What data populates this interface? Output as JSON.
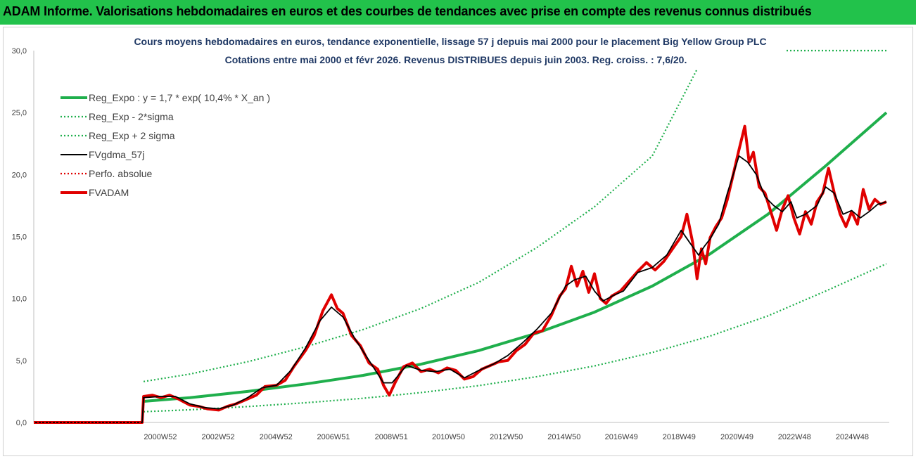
{
  "page": {
    "banner_title": "ADAM Informe. Valorisations hebdomadaires en euros et des courbes de tendances avec prise en compte des revenus connus distribués"
  },
  "colors": {
    "banner": "#22c24b",
    "reg_expo": "#1faf4c",
    "sigma": "#1faf4c",
    "fvgdma": "#000000",
    "perfo": "#e00000",
    "fvadam": "#e00000"
  },
  "chart_data": {
    "type": "line",
    "title": "Cours moyens hebdomadaires en euros, tendance exponentielle, lissage 57 j depuis mai 2000 pour le placement Big Yellow Group PLC",
    "subtitle": "Cotations entre mai 2000 et févr 2026. Revenus DISTRIBUES depuis juin 2003. Reg. croiss. : 7,6/20.",
    "xlabel": "",
    "ylabel": "",
    "ylim": [
      0,
      30
    ],
    "xlim": [
      1996.6,
      2026.2
    ],
    "y_ticks": [
      "0,0",
      "5,0",
      "10,0",
      "15,0",
      "20,0",
      "25,0",
      "30,0"
    ],
    "x_ticks": [
      {
        "label": "2000W52",
        "x": 2000.98
      },
      {
        "label": "2002W52",
        "x": 2002.98
      },
      {
        "label": "2004W52",
        "x": 2004.98
      },
      {
        "label": "2006W51",
        "x": 2006.97
      },
      {
        "label": "2008W51",
        "x": 2008.97
      },
      {
        "label": "2010W50",
        "x": 2010.95
      },
      {
        "label": "2012W50",
        "x": 2012.95
      },
      {
        "label": "2014W50",
        "x": 2014.95
      },
      {
        "label": "2016W49",
        "x": 2016.93
      },
      {
        "label": "2018W49",
        "x": 2018.93
      },
      {
        "label": "2020W49",
        "x": 2020.93
      },
      {
        "label": "2022W48",
        "x": 2022.92
      },
      {
        "label": "2024W48",
        "x": 2024.92
      }
    ],
    "grid": false,
    "legend_position": "top-left",
    "series": [
      {
        "name": "Reg_Expo : y = 1,7 * exp( 10,4% * X_an )",
        "style": "solid-thick",
        "color": "#1faf4c",
        "x": [
          2000.4,
          2002,
          2004,
          2006,
          2008,
          2010,
          2012,
          2014,
          2016,
          2018,
          2020,
          2022,
          2024,
          2026.1
        ],
        "values": [
          1.7,
          2.0,
          2.5,
          3.1,
          3.8,
          4.7,
          5.8,
          7.2,
          8.9,
          11.0,
          13.6,
          16.8,
          20.7,
          25.0
        ]
      },
      {
        "name": "Reg_Exp - 2*sigma",
        "style": "dotted",
        "color": "#1faf4c",
        "x": [
          2000.4,
          2002,
          2004,
          2006,
          2008,
          2010,
          2012,
          2014,
          2016,
          2018,
          2020,
          2022,
          2024,
          2026.1
        ],
        "values": [
          0.87,
          1.02,
          1.28,
          1.59,
          1.95,
          2.41,
          2.97,
          3.69,
          4.56,
          5.64,
          6.97,
          8.6,
          10.6,
          12.8
        ]
      },
      {
        "name": "Reg_Exp + 2 sigma",
        "style": "dotted",
        "color": "#1faf4c",
        "x": [
          2000.4,
          2002,
          2004,
          2006,
          2008,
          2010,
          2012,
          2014,
          2016,
          2018,
          2019.55
        ],
        "values": [
          3.3,
          3.9,
          4.9,
          6.1,
          7.5,
          9.2,
          11.3,
          14.1,
          17.4,
          21.5,
          28.5
        ]
      },
      {
        "name": "FVgdma_57j",
        "style": "solid",
        "color": "#000000",
        "x": [
          1996.6,
          2000.35,
          2000.4,
          2001,
          2001.5,
          2002,
          2002.5,
          2003,
          2003.5,
          2004,
          2004.5,
          2005,
          2005.5,
          2006,
          2006.5,
          2006.9,
          2007.3,
          2007.7,
          2008.2,
          2008.7,
          2009.0,
          2009.5,
          2010,
          2010.5,
          2011,
          2011.5,
          2012,
          2012.5,
          2013,
          2013.5,
          2014,
          2014.5,
          2015,
          2015.3,
          2015.7,
          2016,
          2016.3,
          2016.7,
          2017,
          2017.5,
          2018,
          2018.5,
          2019,
          2019.3,
          2019.6,
          2019.8,
          2020,
          2020.3,
          2020.6,
          2021,
          2021.3,
          2021.6,
          2021.9,
          2022.2,
          2022.5,
          2022.8,
          2023,
          2023.3,
          2023.7,
          2024,
          2024.3,
          2024.6,
          2024.9,
          2025.2,
          2025.5,
          2025.8,
          2026.1
        ],
        "values": [
          0,
          0,
          2.0,
          2.1,
          2.1,
          1.5,
          1.2,
          1.1,
          1.4,
          2.0,
          2.8,
          3.0,
          4.2,
          6.0,
          8.2,
          9.3,
          8.5,
          6.8,
          5.0,
          3.2,
          3.2,
          4.6,
          4.2,
          4.1,
          4.3,
          3.6,
          4.2,
          4.7,
          5.4,
          6.4,
          7.5,
          8.8,
          11.0,
          11.5,
          11.8,
          10.6,
          9.8,
          10.3,
          10.6,
          12.1,
          12.5,
          13.5,
          15.5,
          14.5,
          13.5,
          14.2,
          14.8,
          16.0,
          18.5,
          21.5,
          21.0,
          20.0,
          18.2,
          17.5,
          17.0,
          17.8,
          16.5,
          16.8,
          17.5,
          19.0,
          18.5,
          16.8,
          17.1,
          16.5,
          17.0,
          17.6,
          17.8
        ]
      },
      {
        "name": "Perfo. absolue",
        "style": "dotted",
        "color": "#e00000",
        "x": [
          1996.6,
          2000.35,
          2000.4
        ],
        "values": [
          0,
          0,
          0
        ]
      },
      {
        "name": "FVADAM",
        "style": "solid-thick",
        "color": "#e00000",
        "x": [
          1996.6,
          2000.35,
          2000.4,
          2000.7,
          2001,
          2001.3,
          2001.6,
          2002,
          2002.3,
          2002.6,
          2003,
          2003.3,
          2003.6,
          2004,
          2004.3,
          2004.6,
          2005,
          2005.3,
          2005.6,
          2006,
          2006.3,
          2006.6,
          2006.9,
          2007.1,
          2007.3,
          2007.6,
          2007.9,
          2008.2,
          2008.5,
          2008.7,
          2008.9,
          2009.1,
          2009.4,
          2009.7,
          2010,
          2010.3,
          2010.6,
          2010.9,
          2011.2,
          2011.5,
          2011.8,
          2012.1,
          2012.4,
          2012.7,
          2013,
          2013.3,
          2013.6,
          2013.9,
          2014.2,
          2014.5,
          2014.8,
          2015.0,
          2015.2,
          2015.4,
          2015.6,
          2015.8,
          2016.0,
          2016.2,
          2016.4,
          2016.6,
          2016.9,
          2017.2,
          2017.5,
          2017.8,
          2018.1,
          2018.4,
          2018.7,
          2019.0,
          2019.2,
          2019.4,
          2019.55,
          2019.7,
          2019.85,
          2020.0,
          2020.2,
          2020.4,
          2020.6,
          2020.8,
          2021.0,
          2021.2,
          2021.35,
          2021.5,
          2021.7,
          2021.9,
          2022.1,
          2022.3,
          2022.5,
          2022.7,
          2022.9,
          2023.1,
          2023.3,
          2023.5,
          2023.7,
          2023.9,
          2024.1,
          2024.3,
          2024.5,
          2024.7,
          2024.9,
          2025.1,
          2025.3,
          2025.5,
          2025.7,
          2025.9,
          2026.1
        ],
        "values": [
          0,
          0,
          2.1,
          2.2,
          2.0,
          2.2,
          1.9,
          1.4,
          1.3,
          1.1,
          1.0,
          1.3,
          1.5,
          1.9,
          2.2,
          2.9,
          3.0,
          3.4,
          4.5,
          5.8,
          7.0,
          9.0,
          10.3,
          9.2,
          8.8,
          7.0,
          6.2,
          4.8,
          4.3,
          3.0,
          2.2,
          3.2,
          4.5,
          4.8,
          4.1,
          4.3,
          4.0,
          4.4,
          4.2,
          3.5,
          3.7,
          4.3,
          4.6,
          4.9,
          5.0,
          5.8,
          6.3,
          7.2,
          7.4,
          8.6,
          10.2,
          10.8,
          12.6,
          11.0,
          12.2,
          10.5,
          12.0,
          10.0,
          9.6,
          10.2,
          10.6,
          11.4,
          12.2,
          12.9,
          12.3,
          13.0,
          14.0,
          15.0,
          16.8,
          14.5,
          11.6,
          14.0,
          12.8,
          14.9,
          15.8,
          16.5,
          18.0,
          20.0,
          22.0,
          23.9,
          21.0,
          21.8,
          19.0,
          18.5,
          17.0,
          15.5,
          17.2,
          18.3,
          16.5,
          15.2,
          17.0,
          16.0,
          17.8,
          18.5,
          20.5,
          18.5,
          16.8,
          15.8,
          17.0,
          16.0,
          18.8,
          17.2,
          18.0,
          17.6,
          17.8
        ]
      }
    ]
  }
}
